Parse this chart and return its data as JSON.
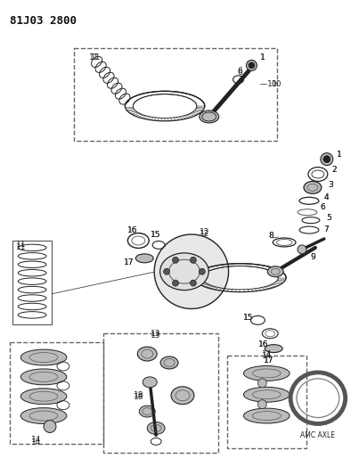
{
  "title": "81J03 2800",
  "bg_color": "#ffffff",
  "fig_width": 3.94,
  "fig_height": 5.33,
  "dpi": 100,
  "amc_axle_label": "AMC AXLE"
}
